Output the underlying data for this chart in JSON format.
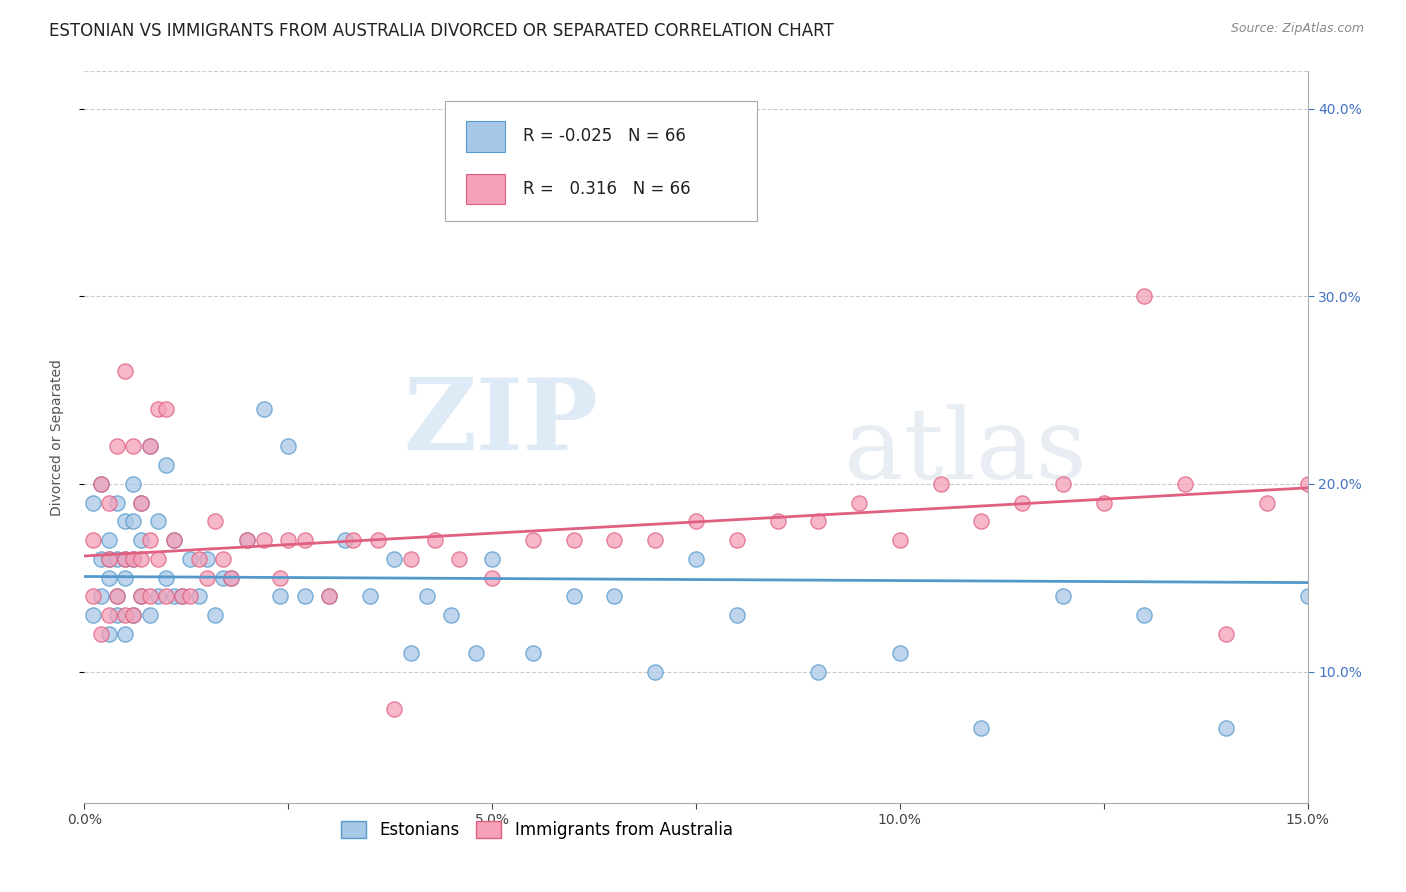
{
  "title": "ESTONIAN VS IMMIGRANTS FROM AUSTRALIA DIVORCED OR SEPARATED CORRELATION CHART",
  "source_text": "Source: ZipAtlas.com",
  "ylabel": "Divorced or Separated",
  "r_estonian": -0.025,
  "r_australia": 0.316,
  "n_estonian": 66,
  "n_australia": 66,
  "color_estonian": "#a8c8e8",
  "color_australia": "#f4a0b8",
  "color_estonian_line": "#5599cc",
  "color_australia_line": "#e06080",
  "xmin": 0.0,
  "xmax": 0.15,
  "ymin": 0.03,
  "ymax": 0.42,
  "yticks": [
    0.1,
    0.2,
    0.3,
    0.4
  ],
  "ytick_labels": [
    "10.0%",
    "20.0%",
    "30.0%",
    "40.0%"
  ],
  "xticks": [
    0.0,
    0.025,
    0.05,
    0.075,
    0.1,
    0.125,
    0.15
  ],
  "xtick_labels": [
    "0.0%",
    "",
    "5.0%",
    "",
    "10.0%",
    "",
    "15.0%"
  ],
  "legend_label_estonian": "Estonians",
  "legend_label_australia": "Immigrants from Australia",
  "estonian_x": [
    0.001,
    0.001,
    0.002,
    0.002,
    0.002,
    0.003,
    0.003,
    0.003,
    0.003,
    0.004,
    0.004,
    0.004,
    0.004,
    0.005,
    0.005,
    0.005,
    0.005,
    0.006,
    0.006,
    0.006,
    0.006,
    0.007,
    0.007,
    0.007,
    0.008,
    0.008,
    0.009,
    0.009,
    0.01,
    0.01,
    0.011,
    0.011,
    0.012,
    0.013,
    0.014,
    0.015,
    0.016,
    0.017,
    0.018,
    0.02,
    0.022,
    0.024,
    0.025,
    0.027,
    0.03,
    0.032,
    0.035,
    0.038,
    0.04,
    0.042,
    0.045,
    0.048,
    0.05,
    0.055,
    0.06,
    0.065,
    0.07,
    0.075,
    0.08,
    0.09,
    0.1,
    0.11,
    0.12,
    0.13,
    0.14,
    0.15
  ],
  "estonian_y": [
    0.13,
    0.19,
    0.14,
    0.16,
    0.2,
    0.12,
    0.15,
    0.17,
    0.16,
    0.13,
    0.16,
    0.19,
    0.14,
    0.12,
    0.15,
    0.18,
    0.16,
    0.13,
    0.16,
    0.18,
    0.2,
    0.14,
    0.17,
    0.19,
    0.13,
    0.22,
    0.14,
    0.18,
    0.15,
    0.21,
    0.14,
    0.17,
    0.14,
    0.16,
    0.14,
    0.16,
    0.13,
    0.15,
    0.15,
    0.17,
    0.24,
    0.14,
    0.22,
    0.14,
    0.14,
    0.17,
    0.14,
    0.16,
    0.11,
    0.14,
    0.13,
    0.11,
    0.16,
    0.11,
    0.14,
    0.14,
    0.1,
    0.16,
    0.13,
    0.1,
    0.11,
    0.07,
    0.14,
    0.13,
    0.07,
    0.14
  ],
  "australia_x": [
    0.001,
    0.001,
    0.002,
    0.002,
    0.003,
    0.003,
    0.003,
    0.004,
    0.004,
    0.005,
    0.005,
    0.005,
    0.006,
    0.006,
    0.006,
    0.007,
    0.007,
    0.007,
    0.008,
    0.008,
    0.008,
    0.009,
    0.009,
    0.01,
    0.01,
    0.011,
    0.012,
    0.013,
    0.014,
    0.015,
    0.016,
    0.017,
    0.018,
    0.02,
    0.022,
    0.024,
    0.025,
    0.027,
    0.03,
    0.033,
    0.036,
    0.038,
    0.04,
    0.043,
    0.046,
    0.05,
    0.055,
    0.06,
    0.065,
    0.07,
    0.075,
    0.08,
    0.085,
    0.09,
    0.095,
    0.1,
    0.105,
    0.11,
    0.115,
    0.12,
    0.125,
    0.13,
    0.135,
    0.14,
    0.145,
    0.15
  ],
  "australia_y": [
    0.14,
    0.17,
    0.12,
    0.2,
    0.13,
    0.16,
    0.19,
    0.14,
    0.22,
    0.13,
    0.16,
    0.26,
    0.13,
    0.16,
    0.22,
    0.14,
    0.19,
    0.16,
    0.14,
    0.22,
    0.17,
    0.16,
    0.24,
    0.14,
    0.24,
    0.17,
    0.14,
    0.14,
    0.16,
    0.15,
    0.18,
    0.16,
    0.15,
    0.17,
    0.17,
    0.15,
    0.17,
    0.17,
    0.14,
    0.17,
    0.17,
    0.08,
    0.16,
    0.17,
    0.16,
    0.15,
    0.17,
    0.17,
    0.17,
    0.17,
    0.18,
    0.17,
    0.18,
    0.18,
    0.19,
    0.17,
    0.2,
    0.18,
    0.19,
    0.2,
    0.19,
    0.3,
    0.2,
    0.12,
    0.19,
    0.2
  ],
  "background_color": "#ffffff",
  "grid_color": "#cccccc",
  "watermark_zip": "ZIP",
  "watermark_atlas": "atlas",
  "title_fontsize": 12,
  "axis_label_fontsize": 10,
  "tick_fontsize": 10,
  "legend_fontsize": 12
}
